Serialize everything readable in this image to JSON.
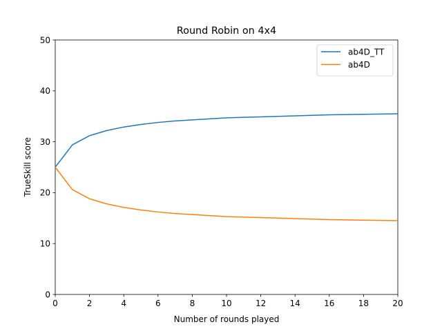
{
  "chart_data": {
    "type": "line",
    "title": "Round Robin on 4x4",
    "xlabel": "Number of rounds played",
    "ylabel": "TrueSkill score",
    "xlim": [
      0,
      20
    ],
    "ylim": [
      0,
      50
    ],
    "xticks": [
      0,
      2,
      4,
      6,
      8,
      10,
      12,
      14,
      16,
      18,
      20
    ],
    "yticks": [
      0,
      10,
      20,
      30,
      40,
      50
    ],
    "grid": false,
    "legend_position": "top-right",
    "x": [
      0,
      1,
      2,
      3,
      4,
      5,
      6,
      7,
      8,
      9,
      10,
      11,
      12,
      13,
      14,
      15,
      16,
      17,
      18,
      19,
      20
    ],
    "series": [
      {
        "name": "ab4D_TT",
        "color": "#1f77b4",
        "values": [
          25.0,
          29.4,
          31.2,
          32.2,
          32.9,
          33.4,
          33.8,
          34.1,
          34.3,
          34.5,
          34.7,
          34.8,
          34.9,
          35.0,
          35.1,
          35.2,
          35.3,
          35.35,
          35.4,
          35.45,
          35.5
        ]
      },
      {
        "name": "ab4D",
        "color": "#ff7f0e",
        "values": [
          25.0,
          20.6,
          18.8,
          17.8,
          17.1,
          16.6,
          16.2,
          15.9,
          15.7,
          15.5,
          15.3,
          15.2,
          15.1,
          15.0,
          14.9,
          14.8,
          14.7,
          14.65,
          14.6,
          14.55,
          14.5
        ]
      }
    ]
  }
}
